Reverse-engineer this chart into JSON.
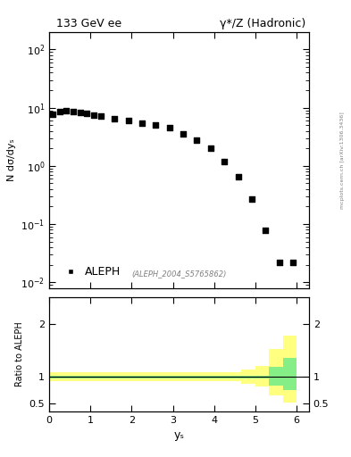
{
  "title_left": "133 GeV ee",
  "title_right": "γ*/Z (Hadronic)",
  "ylabel_main": "N dσ/dyₛ",
  "ylabel_ratio": "Ratio to ALEPH",
  "xlabel": "yₛ",
  "legend_label": "ALEPH",
  "watermark": "(ALEPH_2004_S5765862)",
  "arxiv": "mcplots.cern.ch [arXiv:1306.3436]",
  "data_x": [
    0.083,
    0.25,
    0.417,
    0.583,
    0.75,
    0.917,
    1.083,
    1.25,
    1.583,
    1.917,
    2.25,
    2.583,
    2.917,
    3.25,
    3.583,
    3.917,
    4.25,
    4.583,
    4.917,
    5.25,
    5.583,
    5.917
  ],
  "data_y": [
    7.8,
    8.5,
    8.8,
    8.5,
    8.3,
    8.1,
    7.5,
    7.2,
    6.5,
    6.0,
    5.5,
    5.0,
    4.5,
    3.5,
    2.8,
    2.0,
    1.2,
    0.65,
    0.27,
    0.078,
    0.022,
    0.022
  ],
  "xlim": [
    0,
    6.3
  ],
  "ylim_main": [
    0.008,
    200
  ],
  "ylim_ratio": [
    0.35,
    2.5
  ],
  "ratio_yticks": [
    0.5,
    1.0,
    2.0
  ],
  "ratio_band_x": [
    0.0,
    0.333,
    0.667,
    1.0,
    1.333,
    1.667,
    2.0,
    2.333,
    2.667,
    3.0,
    3.333,
    3.667,
    4.0,
    4.333,
    4.667,
    5.0,
    5.333,
    5.667,
    6.0
  ],
  "ratio_green_lo": [
    0.975,
    0.975,
    0.975,
    0.975,
    0.975,
    0.975,
    0.975,
    0.975,
    0.975,
    0.975,
    0.975,
    0.975,
    0.975,
    0.975,
    0.975,
    0.975,
    0.83,
    0.75,
    0.72
  ],
  "ratio_green_hi": [
    1.025,
    1.025,
    1.025,
    1.025,
    1.025,
    1.025,
    1.025,
    1.025,
    1.025,
    1.025,
    1.025,
    1.025,
    1.025,
    1.025,
    1.025,
    1.025,
    1.18,
    1.35,
    1.38
  ],
  "ratio_yellow_lo": [
    0.92,
    0.92,
    0.92,
    0.92,
    0.92,
    0.92,
    0.92,
    0.92,
    0.92,
    0.92,
    0.92,
    0.92,
    0.92,
    0.92,
    0.87,
    0.82,
    0.65,
    0.52,
    0.4
  ],
  "ratio_yellow_hi": [
    1.08,
    1.08,
    1.08,
    1.08,
    1.08,
    1.08,
    1.08,
    1.08,
    1.08,
    1.08,
    1.08,
    1.08,
    1.08,
    1.08,
    1.13,
    1.2,
    1.52,
    1.78,
    1.95
  ],
  "marker_color": "#000000",
  "marker": "s",
  "marker_size": 4,
  "green_color": "#86EE86",
  "yellow_color": "#FFFF80",
  "line_color": "black"
}
